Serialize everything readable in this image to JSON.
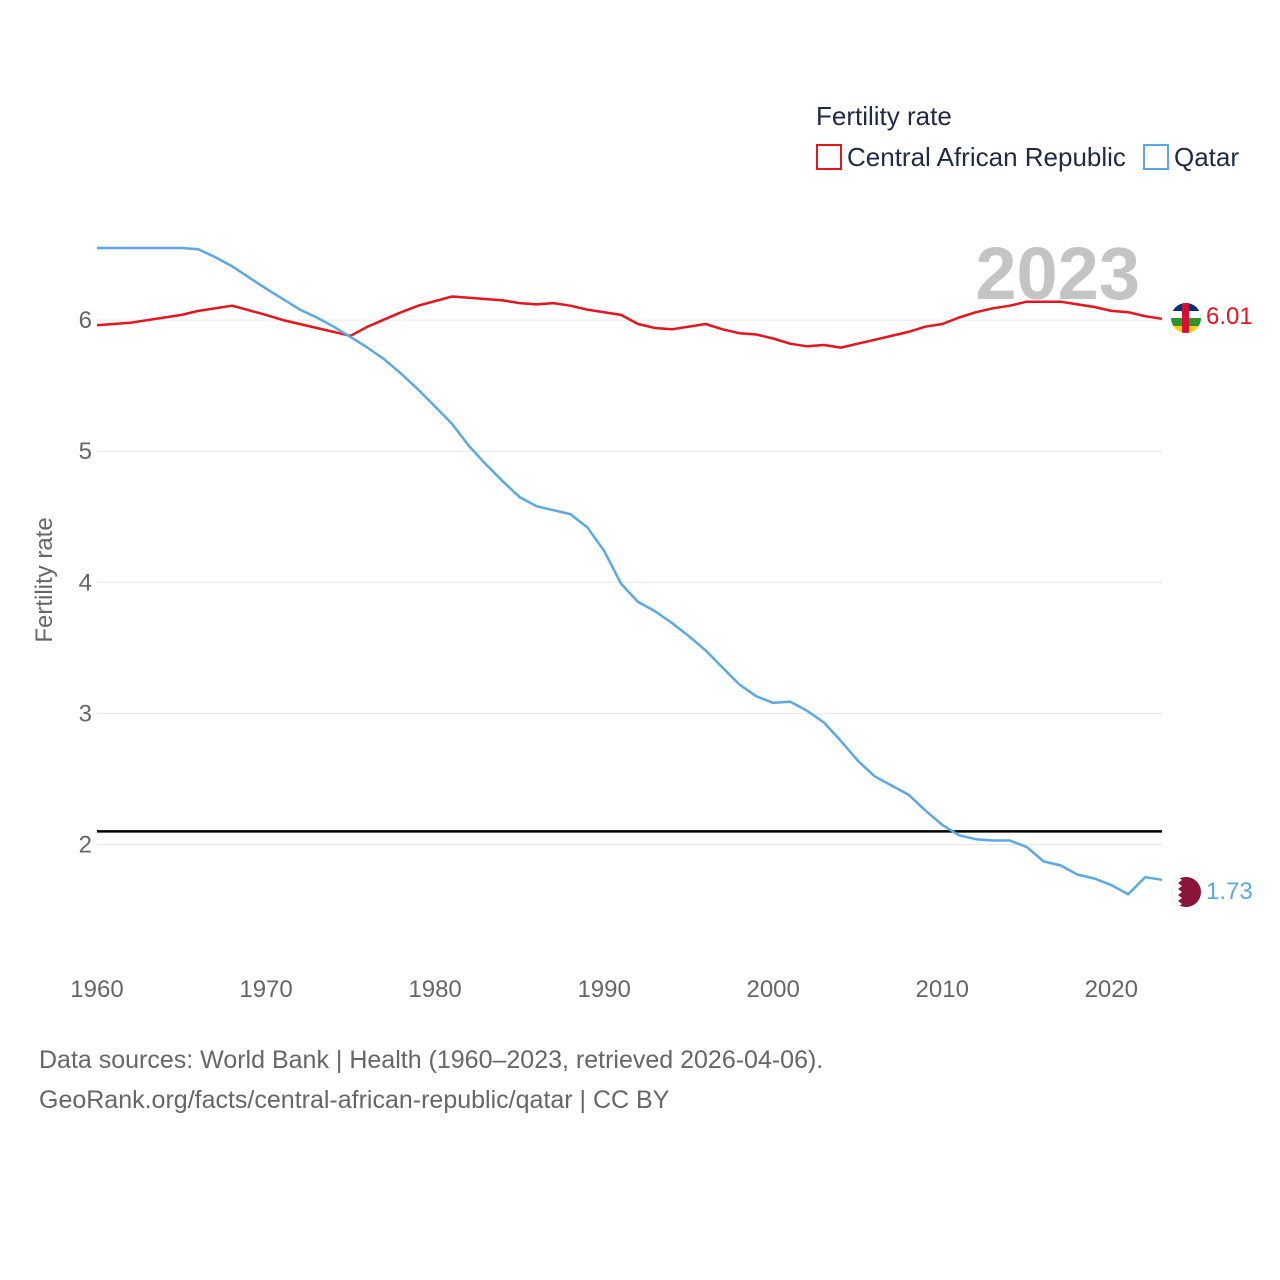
{
  "chart_data": {
    "type": "line",
    "title": "",
    "legend_title": "Fertility rate",
    "ylabel": "Fertility rate",
    "xlabel": "",
    "xlim": [
      1960,
      2023
    ],
    "ylim": [
      1.5,
      6.55
    ],
    "x_ticks": [
      1960,
      1970,
      1980,
      1990,
      2000,
      2010,
      2020
    ],
    "y_ticks": [
      2,
      3,
      4,
      5,
      6
    ],
    "year_label": "2023",
    "reference_line": {
      "value": 2.1,
      "color": "#000000"
    },
    "series": [
      {
        "name": "Central African Republic",
        "color": "#e8131b",
        "end_label": "6.01",
        "x": [
          1960,
          1962,
          1965,
          1966,
          1968,
          1970,
          1971,
          1973,
          1975,
          1976,
          1978,
          1979,
          1981,
          1982,
          1984,
          1985,
          1986,
          1987,
          1988,
          1989,
          1991,
          1992,
          1993,
          1994,
          1996,
          1997,
          1998,
          1999,
          2000,
          2001,
          2002,
          2003,
          2004,
          2005,
          2006,
          2008,
          2009,
          2010,
          2011,
          2012,
          2013,
          2014,
          2015,
          2017,
          2018,
          2019,
          2020,
          2021,
          2022,
          2023
        ],
        "values": [
          5.96,
          5.98,
          6.04,
          6.07,
          6.11,
          6.04,
          6.0,
          5.94,
          5.88,
          5.95,
          6.06,
          6.11,
          6.18,
          6.17,
          6.15,
          6.13,
          6.12,
          6.13,
          6.11,
          6.08,
          6.04,
          5.97,
          5.94,
          5.93,
          5.97,
          5.93,
          5.9,
          5.89,
          5.86,
          5.82,
          5.8,
          5.81,
          5.79,
          5.82,
          5.85,
          5.91,
          5.95,
          5.97,
          6.02,
          6.06,
          6.09,
          6.11,
          6.14,
          6.14,
          6.12,
          6.1,
          6.07,
          6.06,
          6.03,
          6.01
        ]
      },
      {
        "name": "Qatar",
        "color": "#5aa8e8",
        "end_label": "1.73",
        "x": [
          1960,
          1965,
          1966,
          1967,
          1968,
          1970,
          1972,
          1973,
          1974,
          1975,
          1976,
          1977,
          1978,
          1979,
          1980,
          1981,
          1982,
          1983,
          1984,
          1985,
          1986,
          1987,
          1988,
          1989,
          1990,
          1991,
          1992,
          1993,
          1994,
          1995,
          1996,
          1997,
          1998,
          1999,
          2000,
          2001,
          2002,
          2003,
          2004,
          2005,
          2006,
          2007,
          2008,
          2009,
          2010,
          2011,
          2012,
          2013,
          2014,
          2015,
          2016,
          2017,
          2018,
          2019,
          2020,
          2021,
          2022,
          2023
        ],
        "values": [
          6.55,
          6.55,
          6.54,
          6.48,
          6.41,
          6.24,
          6.08,
          6.02,
          5.95,
          5.87,
          5.79,
          5.7,
          5.59,
          5.47,
          5.34,
          5.21,
          5.04,
          4.9,
          4.77,
          4.65,
          4.58,
          4.55,
          4.52,
          4.42,
          4.24,
          3.99,
          3.85,
          3.78,
          3.69,
          3.59,
          3.48,
          3.35,
          3.22,
          3.13,
          3.08,
          3.09,
          3.02,
          2.93,
          2.79,
          2.64,
          2.52,
          2.45,
          2.38,
          2.26,
          2.15,
          2.07,
          2.04,
          2.03,
          2.03,
          1.98,
          1.87,
          1.84,
          1.77,
          1.74,
          1.69,
          1.62,
          1.75,
          1.73
        ]
      }
    ]
  },
  "footer": {
    "line1": "Data sources: World Bank | Health (1960–2023, retrieved 2026-04-06).",
    "line2": "GeoRank.org/facts/central-african-republic/qatar | CC BY"
  }
}
